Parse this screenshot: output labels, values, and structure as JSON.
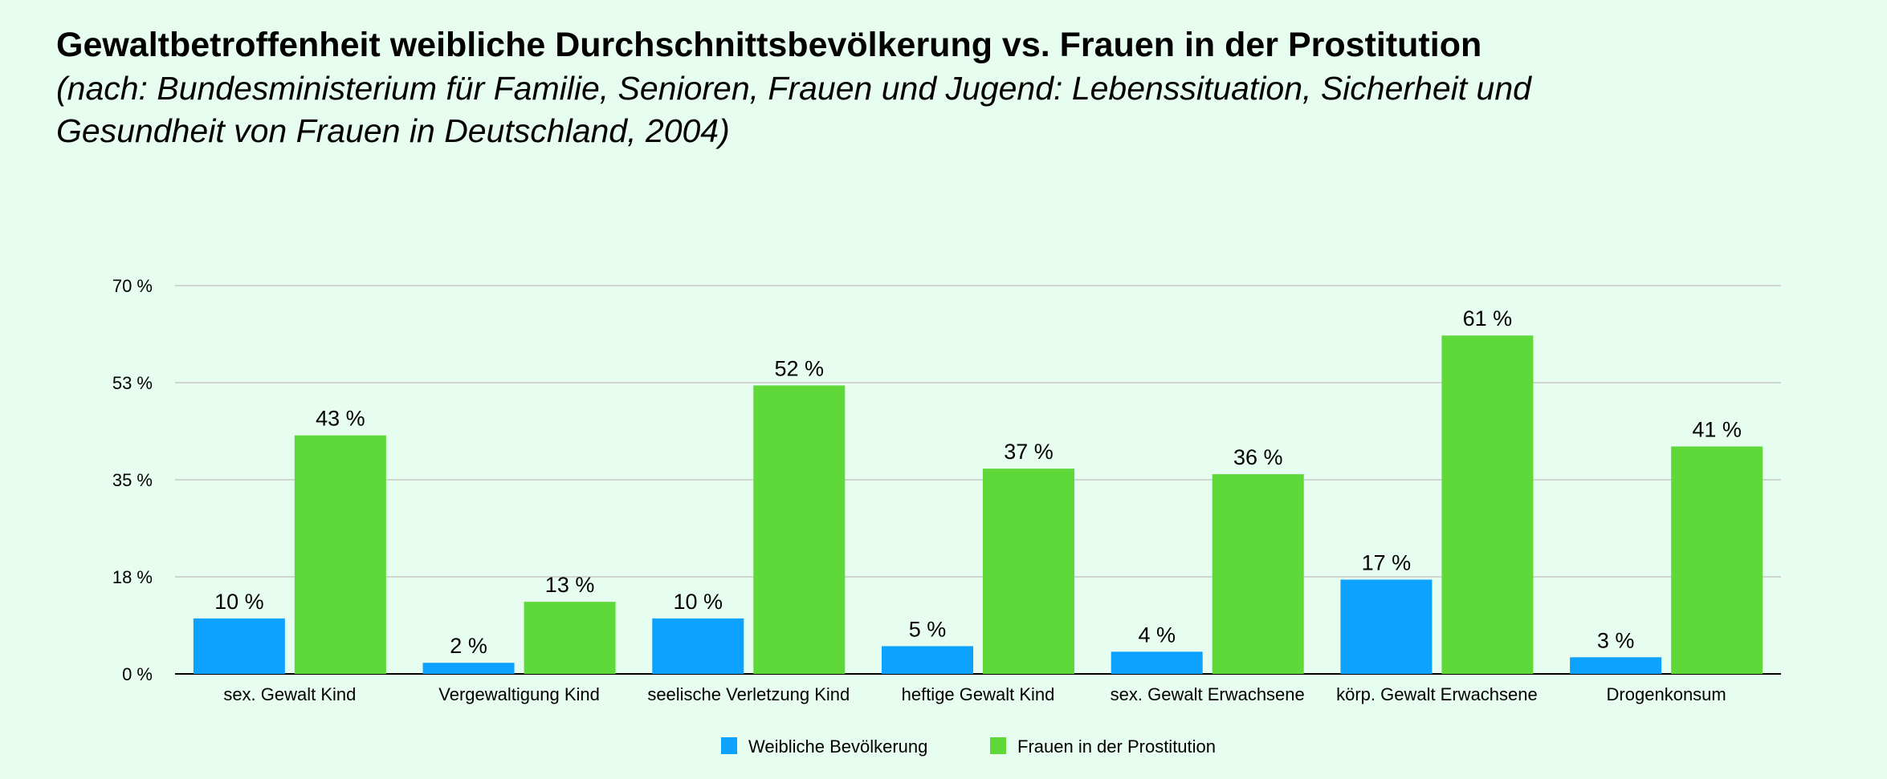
{
  "title": "Gewaltbetroffenheit weibliche Durchschnittsbevölkerung vs. Frauen in der Prostitution",
  "subtitle": "(nach: Bundesministerium für Familie, Senioren, Frauen und Jugend: Lebenssituation, Sicherheit und Gesundheit von Frauen in Deutschland, 2004)",
  "colors": {
    "background": "#e6fdf0",
    "series_1": "#0da2ff",
    "series_2": "#5fd93a",
    "grid": "#c8c8c8",
    "axis": "#000000"
  },
  "chart_data": {
    "type": "bar",
    "categories": [
      "sex. Gewalt Kind",
      "Vergewaltigung Kind",
      "seelische Verletzung Kind",
      "heftige Gewalt Kind",
      "sex. Gewalt Erwachsene",
      "körp. Gewalt Erwachsene",
      "Drogenkonsum"
    ],
    "series": [
      {
        "name": "Weibliche Bevölkerung",
        "values": [
          10,
          2,
          10,
          5,
          4,
          17,
          3
        ],
        "labels": [
          "10 %",
          "2 %",
          "10 %",
          "5 %",
          "4 %",
          "17 %",
          "3 %"
        ]
      },
      {
        "name": "Frauen in der Prostitution",
        "values": [
          43,
          13,
          52,
          37,
          36,
          61,
          41
        ],
        "labels": [
          "43 %",
          "13 %",
          "52 %",
          "37 %",
          "36 %",
          "61 %",
          "41 %"
        ]
      }
    ],
    "yticks": [
      0,
      17.5,
      35,
      52.5,
      70
    ],
    "ytick_labels": [
      "0 %",
      "18 %",
      "35 %",
      "53 %",
      "70 %"
    ],
    "ylim": [
      0,
      70
    ],
    "grid": true,
    "legend_position": "bottom-center"
  }
}
